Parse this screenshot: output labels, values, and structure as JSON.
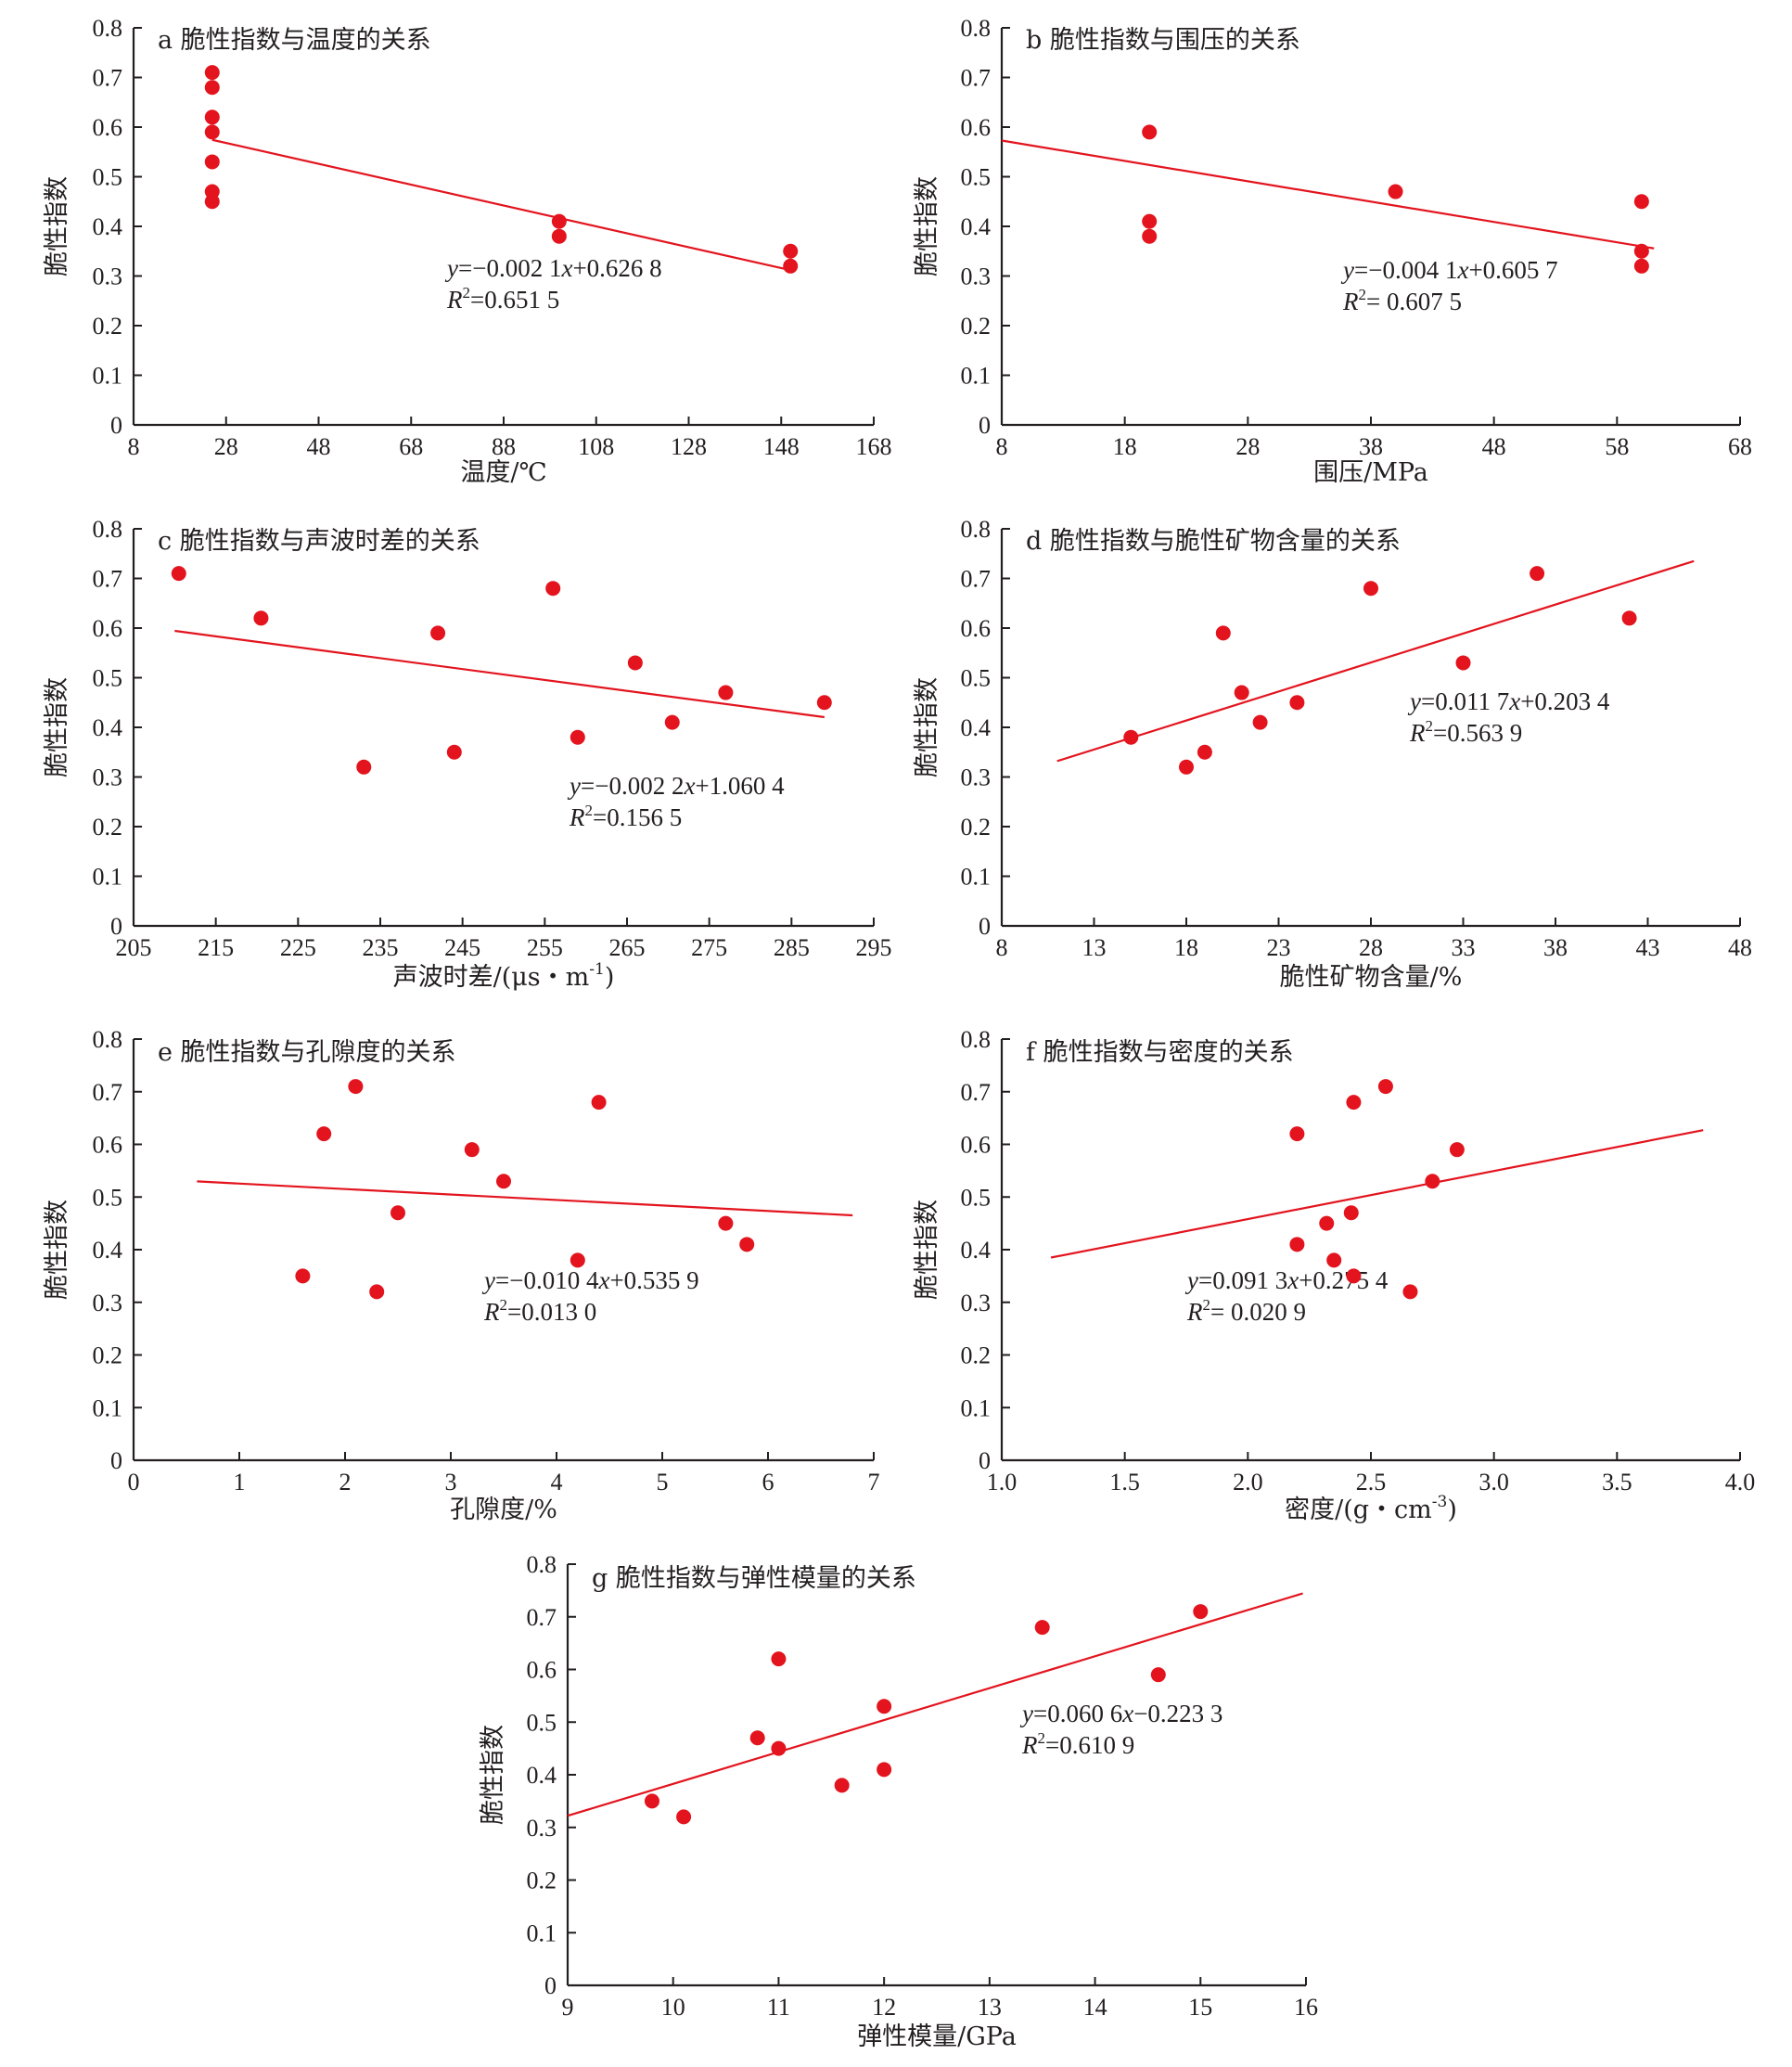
{
  "colors": {
    "accent": "#e3141e",
    "axis": "#231f20"
  },
  "chart_data": [
    {
      "id": "a",
      "type": "scatter",
      "title": "a 脆性指数与温度的关系",
      "xlabel": "温度/℃",
      "ylabel": "脆性指数",
      "xlim": [
        8,
        168
      ],
      "ylim": [
        0,
        0.8
      ],
      "xticks": [
        "8",
        "28",
        "48",
        "68",
        "88",
        "108",
        "128",
        "148",
        "168"
      ],
      "yticks": [
        "0",
        "0.1",
        "0.2",
        "0.3",
        "0.4",
        "0.5",
        "0.6",
        "0.7",
        "0.8"
      ],
      "points": [
        [
          25,
          0.71
        ],
        [
          25,
          0.68
        ],
        [
          25,
          0.62
        ],
        [
          25,
          0.59
        ],
        [
          25,
          0.53
        ],
        [
          25,
          0.47
        ],
        [
          25,
          0.45
        ],
        [
          100,
          0.41
        ],
        [
          100,
          0.38
        ],
        [
          150,
          0.35
        ],
        [
          150,
          0.32
        ]
      ],
      "fit": {
        "x": [
          25,
          150
        ],
        "y": [
          0.5743,
          0.3118
        ]
      },
      "equation": {
        "lhs": "y",
        "rhs": "=−0.002 1",
        "var": "x",
        "rest": "+0.626 8",
        "r2_label": "R",
        "r2_exp": "2",
        "r2_value": "=0.651 5"
      },
      "grid": false
    },
    {
      "id": "b",
      "type": "scatter",
      "title": "b 脆性指数与围压的关系",
      "xlabel": "围压/MPa",
      "ylabel": "脆性指数",
      "xlim": [
        8,
        68
      ],
      "ylim": [
        0,
        0.8
      ],
      "xticks": [
        "8",
        "18",
        "28",
        "38",
        "48",
        "58",
        "68"
      ],
      "yticks": [
        "0",
        "0.1",
        "0.2",
        "0.3",
        "0.4",
        "0.5",
        "0.6",
        "0.7",
        "0.8"
      ],
      "points": [
        [
          20,
          0.59
        ],
        [
          20,
          0.41
        ],
        [
          20,
          0.38
        ],
        [
          40,
          0.47
        ],
        [
          60,
          0.45
        ],
        [
          60,
          0.35
        ],
        [
          60,
          0.32
        ]
      ],
      "fit": {
        "x": [
          8,
          61
        ],
        "y": [
          0.5729,
          0.3556
        ]
      },
      "equation": {
        "lhs": "y",
        "rhs": "=−0.004 1",
        "var": "x",
        "rest": "+0.605 7",
        "r2_label": "R",
        "r2_exp": "2",
        "r2_value": "= 0.607 5"
      },
      "grid": false
    },
    {
      "id": "c",
      "type": "scatter",
      "title": "c 脆性指数与声波时差的关系",
      "xlabel": "声波时差/(μs・m",
      "xlabel_sup": "-1",
      "xlabel_tail": ")",
      "ylabel": "脆性指数",
      "xlim": [
        205,
        295
      ],
      "ylim": [
        0,
        0.8
      ],
      "xticks": [
        "205",
        "215",
        "225",
        "235",
        "245",
        "255",
        "265",
        "275",
        "285",
        "295"
      ],
      "yticks": [
        "0",
        "0.1",
        "0.2",
        "0.3",
        "0.4",
        "0.5",
        "0.6",
        "0.7",
        "0.8"
      ],
      "points": [
        [
          210.5,
          0.71
        ],
        [
          220.5,
          0.62
        ],
        [
          233,
          0.32
        ],
        [
          242,
          0.59
        ],
        [
          244,
          0.35
        ],
        [
          256,
          0.68
        ],
        [
          259,
          0.38
        ],
        [
          266,
          0.53
        ],
        [
          270.5,
          0.41
        ],
        [
          277,
          0.47
        ],
        [
          289,
          0.45
        ]
      ],
      "fit": {
        "x": [
          210,
          289
        ],
        "y": [
          0.5944,
          0.4206
        ]
      },
      "equation": {
        "lhs": "y",
        "rhs": "=−0.002 2",
        "var": "x",
        "rest": "+1.060 4",
        "r2_label": "R",
        "r2_exp": "2",
        "r2_value": "=0.156 5"
      },
      "grid": false
    },
    {
      "id": "d",
      "type": "scatter",
      "title": "d 脆性指数与脆性矿物含量的关系",
      "xlabel": "脆性矿物含量/%",
      "ylabel": "脆性指数",
      "xlim": [
        8,
        48
      ],
      "ylim": [
        0,
        0.8
      ],
      "xticks": [
        "8",
        "13",
        "18",
        "23",
        "28",
        "33",
        "38",
        "43",
        "48"
      ],
      "yticks": [
        "0",
        "0.1",
        "0.2",
        "0.3",
        "0.4",
        "0.5",
        "0.6",
        "0.7",
        "0.8"
      ],
      "points": [
        [
          15,
          0.38
        ],
        [
          18,
          0.32
        ],
        [
          19,
          0.35
        ],
        [
          20,
          0.59
        ],
        [
          21,
          0.47
        ],
        [
          22,
          0.41
        ],
        [
          24,
          0.45
        ],
        [
          28,
          0.68
        ],
        [
          33,
          0.53
        ],
        [
          37,
          0.71
        ],
        [
          42,
          0.62
        ]
      ],
      "fit": {
        "x": [
          11,
          45.5
        ],
        "y": [
          0.332,
          0.735
        ]
      },
      "equation": {
        "lhs": "y",
        "rhs": "=0.011 7",
        "var": "x",
        "rest": "+0.203 4",
        "r2_label": "R",
        "r2_exp": "2",
        "r2_value": "=0.563 9"
      },
      "grid": false
    },
    {
      "id": "e",
      "type": "scatter",
      "title": "e 脆性指数与孔隙度的关系",
      "xlabel": "孔隙度/%",
      "ylabel": "脆性指数",
      "xlim": [
        0,
        7
      ],
      "ylim": [
        0,
        0.8
      ],
      "xticks": [
        "0",
        "1",
        "2",
        "3",
        "4",
        "5",
        "6",
        "7"
      ],
      "yticks": [
        "0",
        "0.1",
        "0.2",
        "0.3",
        "0.4",
        "0.5",
        "0.6",
        "0.7",
        "0.8"
      ],
      "points": [
        [
          1.6,
          0.35
        ],
        [
          1.8,
          0.62
        ],
        [
          2.1,
          0.71
        ],
        [
          2.3,
          0.32
        ],
        [
          2.5,
          0.47
        ],
        [
          3.2,
          0.59
        ],
        [
          3.5,
          0.53
        ],
        [
          4.2,
          0.38
        ],
        [
          4.4,
          0.68
        ],
        [
          5.6,
          0.45
        ],
        [
          5.8,
          0.41
        ]
      ],
      "fit": {
        "x": [
          0.6,
          6.8
        ],
        "y": [
          0.5297,
          0.4652
        ]
      },
      "equation": {
        "lhs": "y",
        "rhs": "=−0.010 4",
        "var": "x",
        "rest": "+0.535 9",
        "r2_label": "R",
        "r2_exp": "2",
        "r2_value": "=0.013 0"
      },
      "grid": false
    },
    {
      "id": "f",
      "type": "scatter",
      "title": "f 脆性指数与密度的关系",
      "xlabel": "密度/(g・cm",
      "xlabel_sup": "-3",
      "xlabel_tail": ")",
      "ylabel": "脆性指数",
      "xlim": [
        1.0,
        4.0
      ],
      "ylim": [
        0,
        0.8
      ],
      "xticks": [
        "1.0",
        "1.5",
        "2.0",
        "2.5",
        "3.0",
        "3.5",
        "4.0"
      ],
      "yticks": [
        "0",
        "0.1",
        "0.2",
        "0.3",
        "0.4",
        "0.5",
        "0.6",
        "0.7",
        "0.8"
      ],
      "points": [
        [
          2.2,
          0.62
        ],
        [
          2.2,
          0.41
        ],
        [
          2.32,
          0.45
        ],
        [
          2.35,
          0.38
        ],
        [
          2.42,
          0.47
        ],
        [
          2.43,
          0.35
        ],
        [
          2.43,
          0.68
        ],
        [
          2.56,
          0.71
        ],
        [
          2.66,
          0.32
        ],
        [
          2.75,
          0.53
        ],
        [
          2.85,
          0.59
        ]
      ],
      "fit": {
        "x": [
          1.2,
          3.85
        ],
        "y": [
          0.385,
          0.627
        ]
      },
      "equation": {
        "lhs": "y",
        "rhs": "=0.091 3",
        "var": "x",
        "rest": "+0.275 4",
        "r2_label": "R",
        "r2_exp": "2",
        "r2_value": "= 0.020 9"
      },
      "grid": false
    },
    {
      "id": "g",
      "type": "scatter",
      "title": "g 脆性指数与弹性模量的关系",
      "xlabel": "弹性模量/GPa",
      "ylabel": "脆性指数",
      "xlim": [
        9,
        16
      ],
      "ylim": [
        0,
        0.8
      ],
      "xticks": [
        "9",
        "10",
        "11",
        "12",
        "13",
        "14",
        "15",
        "16"
      ],
      "yticks": [
        "0",
        "0.1",
        "0.2",
        "0.3",
        "0.4",
        "0.5",
        "0.6",
        "0.7",
        "0.8"
      ],
      "points": [
        [
          9.8,
          0.35
        ],
        [
          10.1,
          0.32
        ],
        [
          10.8,
          0.47
        ],
        [
          11,
          0.62
        ],
        [
          11,
          0.45
        ],
        [
          11.6,
          0.38
        ],
        [
          12,
          0.53
        ],
        [
          12,
          0.41
        ],
        [
          13.5,
          0.68
        ],
        [
          14.6,
          0.59
        ],
        [
          15,
          0.71
        ]
      ],
      "fit": {
        "x": [
          9,
          15.97
        ],
        "y": [
          0.3221,
          0.7445
        ]
      },
      "equation": {
        "lhs": "y",
        "rhs": "=0.060 6",
        "var": "x",
        "rest": "−0.223 3",
        "r2_label": "R",
        "r2_exp": "2",
        "r2_value": "=0.610 9"
      },
      "grid": false
    }
  ]
}
